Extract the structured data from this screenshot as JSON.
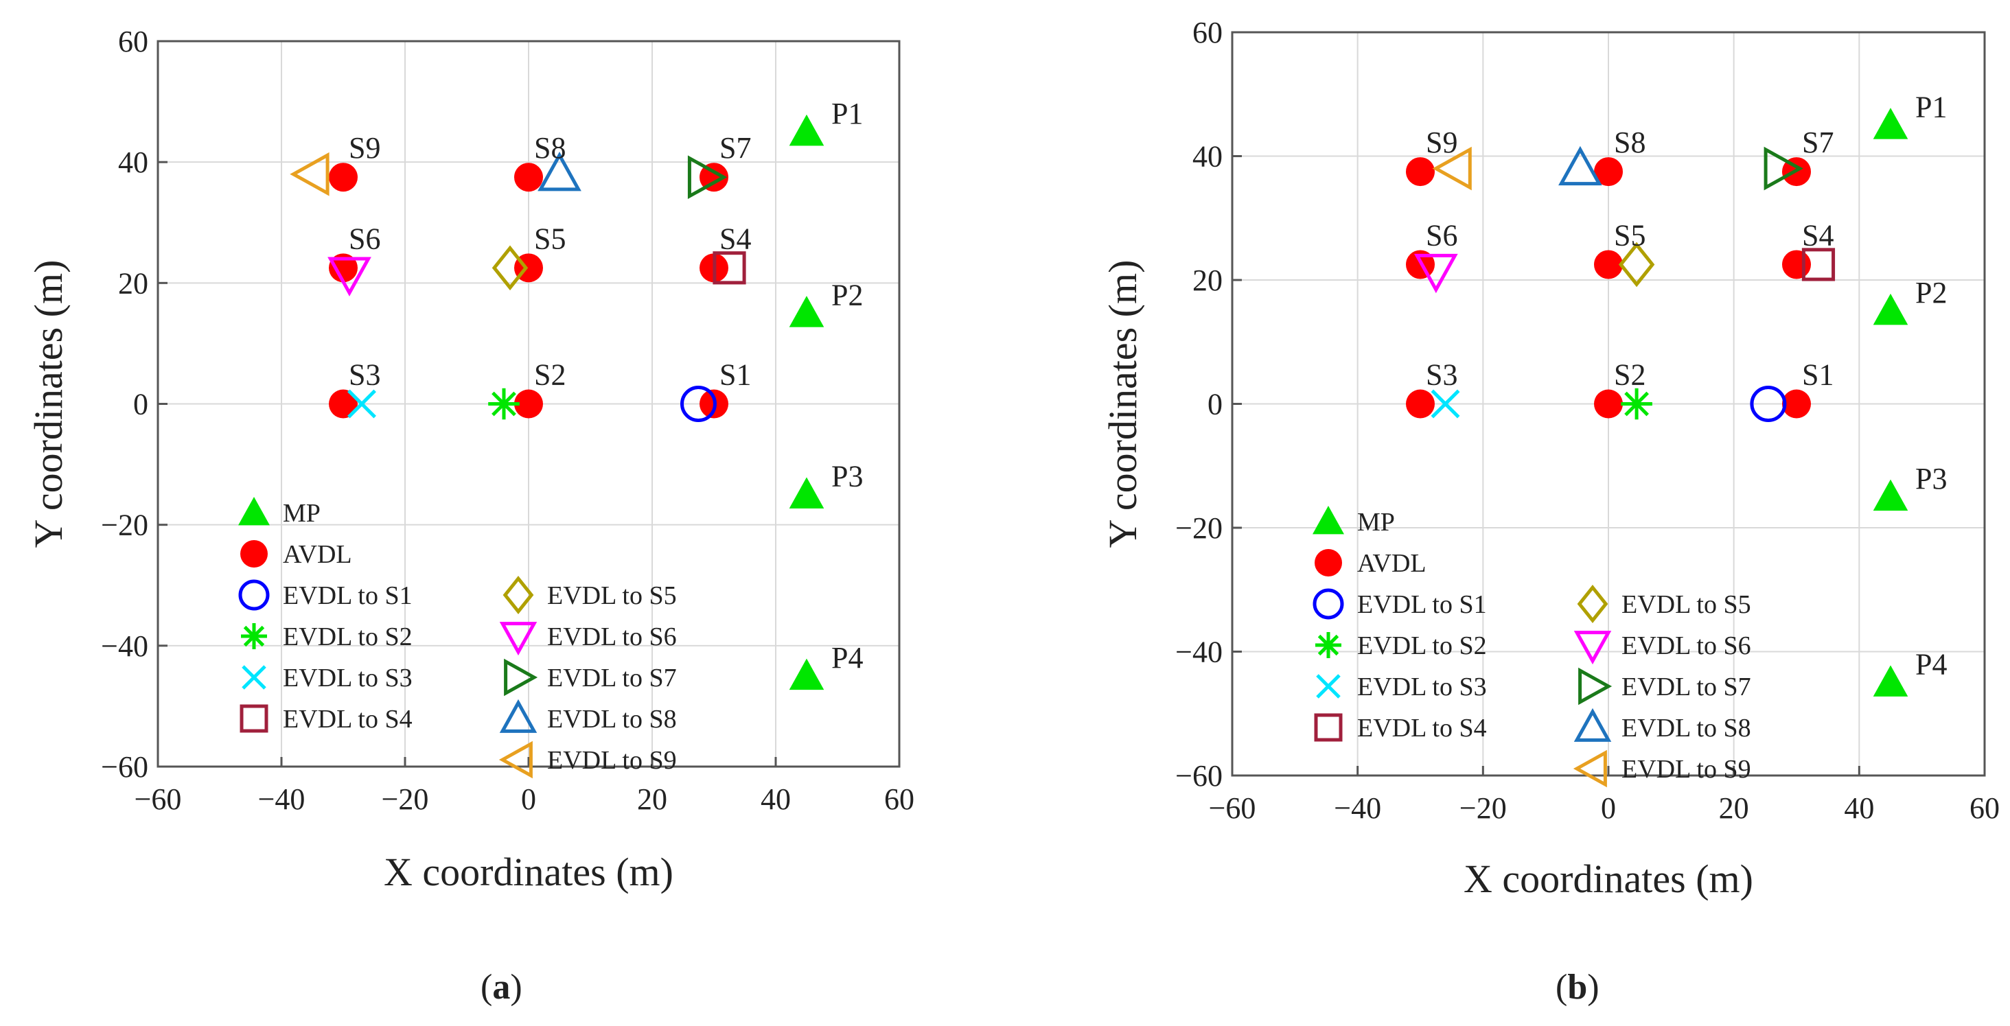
{
  "colors": {
    "MP": "#00e600",
    "AVDL": "#ff0000",
    "S1": "#0000ff",
    "S2": "#00e600",
    "S3": "#00e5ff",
    "S4": "#a0203c",
    "S5": "#b0a000",
    "S6": "#ff00ff",
    "S7": "#1a7a1a",
    "S8": "#1e73be",
    "S9": "#e8a020",
    "grid": "#d9d9d9",
    "axis": "#555555"
  },
  "marker_shapes": {
    "MP": "triangle-up-filled",
    "AVDL": "circle-filled",
    "S1": "circle",
    "S2": "asterisk",
    "S3": "cross",
    "S4": "square",
    "S5": "diamond",
    "S6": "triangle-down",
    "S7": "triangle-right",
    "S8": "triangle-up",
    "S9": "triangle-left"
  },
  "legend": {
    "items": [
      {
        "key": "MP",
        "label": "MP"
      },
      {
        "key": "AVDL",
        "label": "AVDL"
      },
      {
        "key": "S1",
        "label": "EVDL to S1"
      },
      {
        "key": "S2",
        "label": "EVDL to S2"
      },
      {
        "key": "S3",
        "label": "EVDL to S3"
      },
      {
        "key": "S4",
        "label": "EVDL to S4"
      },
      {
        "key": "S5",
        "label": "EVDL to S5"
      },
      {
        "key": "S6",
        "label": "EVDL to S6"
      },
      {
        "key": "S7",
        "label": "EVDL to S7"
      },
      {
        "key": "S8",
        "label": "EVDL to S8"
      },
      {
        "key": "S9",
        "label": "EVDL to S9"
      }
    ]
  },
  "chart_data": [
    {
      "type": "scatter",
      "panel_label": "(a)",
      "panel_letter": "a",
      "xlabel": "X coordinates (m)",
      "ylabel": "Y coordinates (m)",
      "xlim": [
        -60,
        60
      ],
      "ylim": [
        -60,
        60
      ],
      "xticks": [
        -60,
        -40,
        -20,
        0,
        20,
        40,
        60
      ],
      "yticks": [
        -60,
        -40,
        -20,
        0,
        20,
        40,
        60
      ],
      "grid": true,
      "legend_position": "bottom-center",
      "mp": [
        {
          "name": "P1",
          "x": 45,
          "y": 45
        },
        {
          "name": "P2",
          "x": 45,
          "y": 15
        },
        {
          "name": "P3",
          "x": 45,
          "y": -15
        },
        {
          "name": "P4",
          "x": 45,
          "y": -45
        }
      ],
      "avdl": [
        {
          "name": "S1",
          "x": 30,
          "y": 0
        },
        {
          "name": "S2",
          "x": 0,
          "y": 0
        },
        {
          "name": "S3",
          "x": -30,
          "y": 0
        },
        {
          "name": "S4",
          "x": 30,
          "y": 22.5
        },
        {
          "name": "S5",
          "x": 0,
          "y": 22.5
        },
        {
          "name": "S6",
          "x": -30,
          "y": 22.5
        },
        {
          "name": "S7",
          "x": 30,
          "y": 37.5
        },
        {
          "name": "S8",
          "x": 0,
          "y": 37.5
        },
        {
          "name": "S9",
          "x": -30,
          "y": 37.5
        }
      ],
      "evdl": [
        {
          "key": "S1",
          "x": 27.5,
          "y": 0
        },
        {
          "key": "S2",
          "x": -4,
          "y": 0
        },
        {
          "key": "S3",
          "x": -27,
          "y": 0
        },
        {
          "key": "S4",
          "x": 32.5,
          "y": 22.5
        },
        {
          "key": "S5",
          "x": -3,
          "y": 22.5
        },
        {
          "key": "S6",
          "x": -29,
          "y": 21.5
        },
        {
          "key": "S7",
          "x": 28.5,
          "y": 37.5
        },
        {
          "key": "S8",
          "x": 5,
          "y": 38
        },
        {
          "key": "S9",
          "x": -35,
          "y": 38
        }
      ]
    },
    {
      "type": "scatter",
      "panel_label": "(b)",
      "panel_letter": "b",
      "xlabel": "X coordinates (m)",
      "ylabel": "Y coordinates (m)",
      "xlim": [
        -60,
        60
      ],
      "ylim": [
        -60,
        60
      ],
      "xticks": [
        -60,
        -40,
        -20,
        0,
        20,
        40,
        60
      ],
      "yticks": [
        -60,
        -40,
        -20,
        0,
        20,
        40,
        60
      ],
      "grid": true,
      "legend_position": "bottom-center",
      "mp": [
        {
          "name": "P1",
          "x": 45,
          "y": 45
        },
        {
          "name": "P2",
          "x": 45,
          "y": 15
        },
        {
          "name": "P3",
          "x": 45,
          "y": -15
        },
        {
          "name": "P4",
          "x": 45,
          "y": -45
        }
      ],
      "avdl": [
        {
          "name": "S1",
          "x": 30,
          "y": 0
        },
        {
          "name": "S2",
          "x": 0,
          "y": 0
        },
        {
          "name": "S3",
          "x": -30,
          "y": 0
        },
        {
          "name": "S4",
          "x": 30,
          "y": 22.5
        },
        {
          "name": "S5",
          "x": 0,
          "y": 22.5
        },
        {
          "name": "S6",
          "x": -30,
          "y": 22.5
        },
        {
          "name": "S7",
          "x": 30,
          "y": 37.5
        },
        {
          "name": "S8",
          "x": 0,
          "y": 37.5
        },
        {
          "name": "S9",
          "x": -30,
          "y": 37.5
        }
      ],
      "evdl": [
        {
          "key": "S1",
          "x": 25.5,
          "y": 0
        },
        {
          "key": "S2",
          "x": 4.5,
          "y": 0
        },
        {
          "key": "S3",
          "x": -26,
          "y": 0
        },
        {
          "key": "S4",
          "x": 33.5,
          "y": 22.5
        },
        {
          "key": "S5",
          "x": 4.5,
          "y": 22.5
        },
        {
          "key": "S6",
          "x": -27.5,
          "y": 21.5
        },
        {
          "key": "S7",
          "x": 27.5,
          "y": 38
        },
        {
          "key": "S8",
          "x": -4.5,
          "y": 38
        },
        {
          "key": "S9",
          "x": -24.5,
          "y": 38
        }
      ]
    }
  ]
}
